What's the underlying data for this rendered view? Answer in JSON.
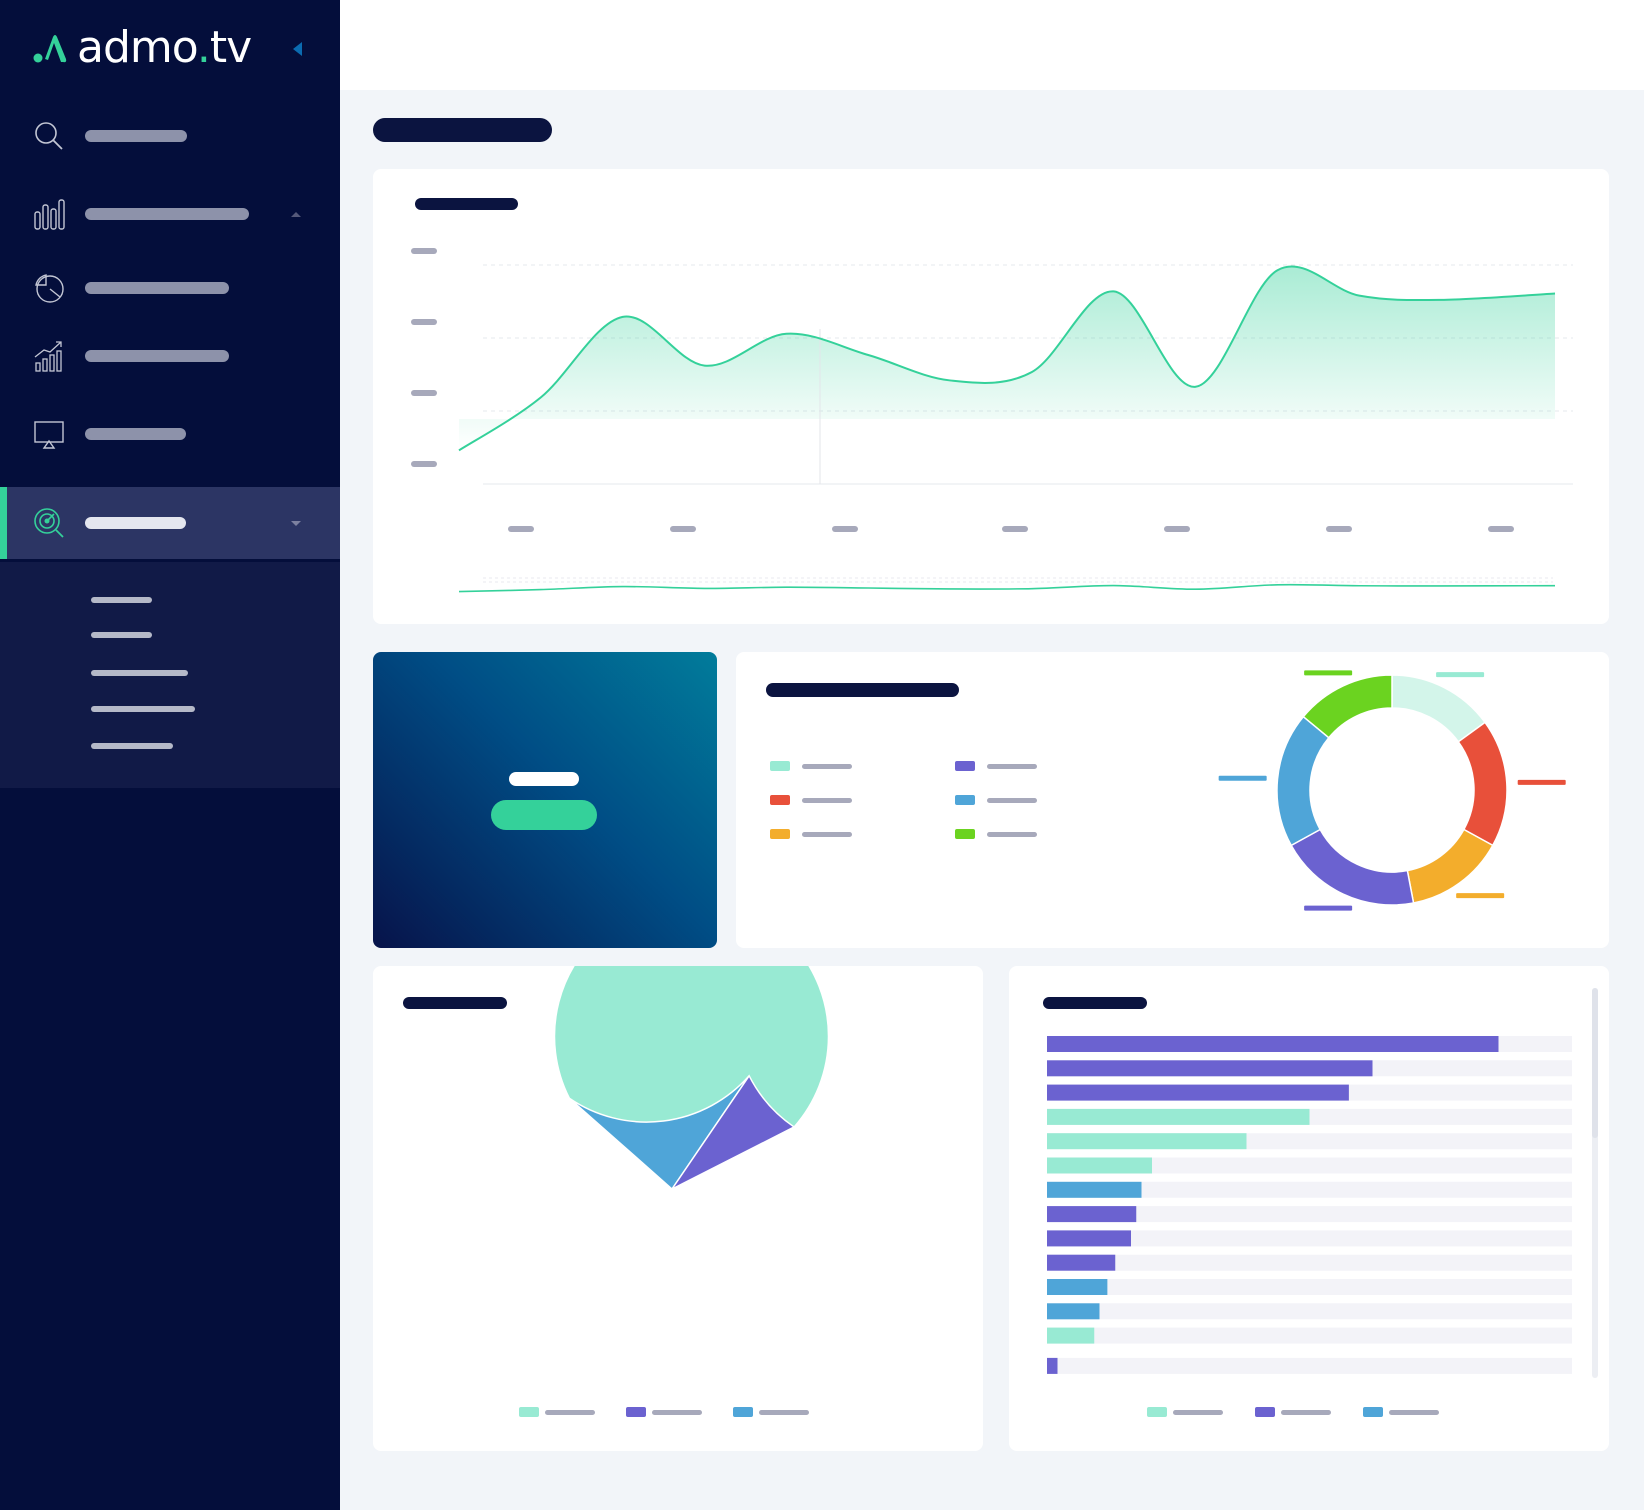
{
  "brand": {
    "name_main": "admo",
    "name_dot": ".",
    "name_tld": "tv",
    "accent_color": "#34d19a",
    "sidebar_bg": "#040e3b"
  },
  "sidebar": {
    "items": [
      {
        "icon": "search-icon"
      },
      {
        "icon": "bar-chart-icon"
      },
      {
        "icon": "pie-chart-icon"
      },
      {
        "icon": "growth-chart-icon"
      },
      {
        "icon": "tv-screen-icon"
      },
      {
        "icon": "target-icon",
        "active": true
      }
    ],
    "submenu_count": 5
  },
  "colors": {
    "mint": "#98ead3",
    "red": "#e8503a",
    "orange": "#f3ad2c",
    "purple": "#6b62d0",
    "blue": "#4fa5d8",
    "green": "#6bd320",
    "line": "#34d19a",
    "title_bar": "#0b1440",
    "label_bar": "#a7a9bb"
  },
  "chart_data": [
    {
      "type": "area",
      "x_tick_count": 7,
      "y_tick_count": 4,
      "grid": true,
      "legend": "none",
      "series": [
        {
          "values": [
            0.05,
            0.3,
            0.68,
            0.45,
            0.6,
            0.5,
            0.38,
            0.42,
            0.8,
            0.35,
            0.9,
            0.78,
            0.76,
            0.79
          ]
        }
      ]
    },
    {
      "type": "pie",
      "variant": "donut",
      "legend": "left",
      "slices": [
        {
          "value": 15,
          "color": "#d3f5ea"
        },
        {
          "value": 18,
          "color": "#e8503a"
        },
        {
          "value": 14,
          "color": "#f3ad2c"
        },
        {
          "value": 20,
          "color": "#6b62d0"
        },
        {
          "value": 19,
          "color": "#4fa5d8"
        },
        {
          "value": 14,
          "color": "#6bd320"
        }
      ]
    },
    {
      "type": "pie",
      "legend": "bottom",
      "slices": [
        {
          "value": 69,
          "color": "#98ead3"
        },
        {
          "value": 23,
          "color": "#4fa5d8"
        },
        {
          "value": 8,
          "color": "#6b62d0"
        }
      ]
    },
    {
      "type": "bar",
      "orientation": "horizontal",
      "legend": "bottom",
      "xlim": [
        0,
        100
      ],
      "values": [
        86,
        62,
        57.5,
        50,
        38,
        20,
        18,
        17,
        16,
        13,
        11.5,
        10,
        9,
        2
      ],
      "colors": [
        "#6b62d0",
        "#6b62d0",
        "#6b62d0",
        "#98ead3",
        "#98ead3",
        "#98ead3",
        "#4fa5d8",
        "#6b62d0",
        "#6b62d0",
        "#6b62d0",
        "#4fa5d8",
        "#4fa5d8",
        "#98ead3",
        "#6b62d0"
      ]
    }
  ]
}
